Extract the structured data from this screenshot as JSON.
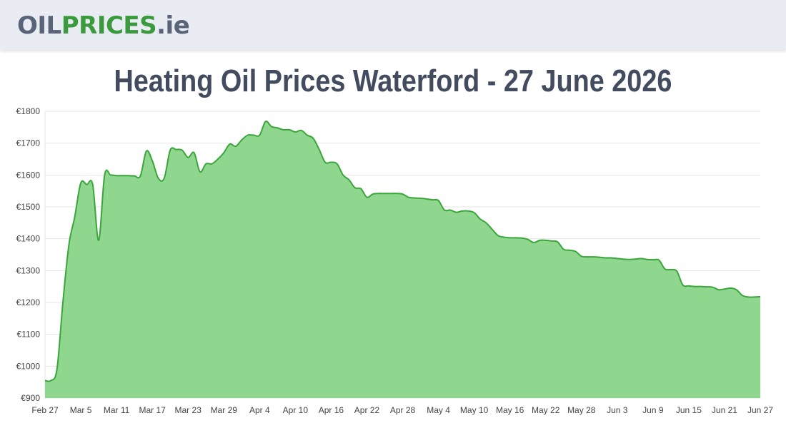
{
  "header": {
    "logo_part1": "OIL",
    "logo_part2": "PRICES",
    "logo_part3": ".ie"
  },
  "page_title": "Heating Oil Prices Waterford - 27 June 2026",
  "colors": {
    "header_bg": "#e9ecf3",
    "logo_gray": "#5a6478",
    "logo_green": "#3b9a3e",
    "area_fill": "#8fd68f",
    "line": "#3aa63a",
    "grid": "#e5e5e5"
  },
  "chart_data": {
    "type": "area",
    "title": "",
    "xlabel": "",
    "ylabel": "",
    "ylim": [
      900,
      1800
    ],
    "grid": true,
    "legend": "none",
    "y_ticks": [
      "€900",
      "€1000",
      "€1100",
      "€1200",
      "€1300",
      "€1400",
      "€1500",
      "€1600",
      "€1700",
      "€1800"
    ],
    "x_ticks": [
      "Feb 27",
      "Mar 5",
      "Mar 11",
      "Mar 17",
      "Mar 23",
      "Mar 29",
      "Apr 4",
      "Apr 10",
      "Apr 16",
      "Apr 22",
      "Apr 28",
      "May 4",
      "May 10",
      "May 16",
      "May 22",
      "May 28",
      "Jun 3",
      "Jun 9",
      "Jun 15",
      "Jun 21",
      "Jun 27"
    ],
    "x_start": "2026-02-27",
    "x_end": "2026-06-27",
    "series": [
      {
        "points": [
          [
            "2026-02-27",
            955
          ],
          [
            "2026-02-28",
            955
          ],
          [
            "2026-03-01",
            990
          ],
          [
            "2026-03-02",
            1200
          ],
          [
            "2026-03-03",
            1380
          ],
          [
            "2026-03-04",
            1470
          ],
          [
            "2026-03-05",
            1575
          ],
          [
            "2026-03-06",
            1570
          ],
          [
            "2026-03-07",
            1570
          ],
          [
            "2026-03-08",
            1395
          ],
          [
            "2026-03-09",
            1600
          ],
          [
            "2026-03-10",
            1600
          ],
          [
            "2026-03-11",
            1598
          ],
          [
            "2026-03-12",
            1598
          ],
          [
            "2026-03-13",
            1598
          ],
          [
            "2026-03-14",
            1597
          ],
          [
            "2026-03-15",
            1597
          ],
          [
            "2026-03-16",
            1675
          ],
          [
            "2026-03-17",
            1645
          ],
          [
            "2026-03-18",
            1590
          ],
          [
            "2026-03-19",
            1590
          ],
          [
            "2026-03-20",
            1678
          ],
          [
            "2026-03-21",
            1680
          ],
          [
            "2026-03-22",
            1678
          ],
          [
            "2026-03-23",
            1655
          ],
          [
            "2026-03-24",
            1670
          ],
          [
            "2026-03-25",
            1610
          ],
          [
            "2026-03-26",
            1635
          ],
          [
            "2026-03-27",
            1635
          ],
          [
            "2026-03-28",
            1650
          ],
          [
            "2026-03-29",
            1670
          ],
          [
            "2026-03-30",
            1697
          ],
          [
            "2026-03-31",
            1690
          ],
          [
            "2026-04-01",
            1710
          ],
          [
            "2026-04-02",
            1725
          ],
          [
            "2026-04-03",
            1725
          ],
          [
            "2026-04-04",
            1725
          ],
          [
            "2026-04-05",
            1768
          ],
          [
            "2026-04-06",
            1752
          ],
          [
            "2026-04-07",
            1748
          ],
          [
            "2026-04-08",
            1742
          ],
          [
            "2026-04-09",
            1742
          ],
          [
            "2026-04-10",
            1735
          ],
          [
            "2026-04-11",
            1740
          ],
          [
            "2026-04-12",
            1725
          ],
          [
            "2026-04-13",
            1715
          ],
          [
            "2026-04-14",
            1680
          ],
          [
            "2026-04-15",
            1640
          ],
          [
            "2026-04-16",
            1640
          ],
          [
            "2026-04-17",
            1635
          ],
          [
            "2026-04-18",
            1600
          ],
          [
            "2026-04-19",
            1585
          ],
          [
            "2026-04-20",
            1560
          ],
          [
            "2026-04-21",
            1557
          ],
          [
            "2026-04-22",
            1530
          ],
          [
            "2026-04-23",
            1540
          ],
          [
            "2026-04-24",
            1542
          ],
          [
            "2026-04-25",
            1542
          ],
          [
            "2026-04-26",
            1542
          ],
          [
            "2026-04-27",
            1542
          ],
          [
            "2026-04-28",
            1540
          ],
          [
            "2026-04-29",
            1530
          ],
          [
            "2026-04-30",
            1528
          ],
          [
            "2026-05-01",
            1527
          ],
          [
            "2026-05-02",
            1525
          ],
          [
            "2026-05-03",
            1522
          ],
          [
            "2026-05-04",
            1520
          ],
          [
            "2026-05-05",
            1490
          ],
          [
            "2026-05-06",
            1490
          ],
          [
            "2026-05-07",
            1483
          ],
          [
            "2026-05-08",
            1487
          ],
          [
            "2026-05-09",
            1487
          ],
          [
            "2026-05-10",
            1482
          ],
          [
            "2026-05-11",
            1462
          ],
          [
            "2026-05-12",
            1450
          ],
          [
            "2026-05-13",
            1430
          ],
          [
            "2026-05-14",
            1410
          ],
          [
            "2026-05-15",
            1405
          ],
          [
            "2026-05-16",
            1403
          ],
          [
            "2026-05-17",
            1403
          ],
          [
            "2026-05-18",
            1402
          ],
          [
            "2026-05-19",
            1398
          ],
          [
            "2026-05-20",
            1388
          ],
          [
            "2026-05-21",
            1395
          ],
          [
            "2026-05-22",
            1395
          ],
          [
            "2026-05-23",
            1393
          ],
          [
            "2026-05-24",
            1390
          ],
          [
            "2026-05-25",
            1367
          ],
          [
            "2026-05-26",
            1364
          ],
          [
            "2026-05-27",
            1360
          ],
          [
            "2026-05-28",
            1345
          ],
          [
            "2026-05-29",
            1343
          ],
          [
            "2026-05-30",
            1343
          ],
          [
            "2026-05-31",
            1342
          ],
          [
            "2026-06-01",
            1340
          ],
          [
            "2026-06-02",
            1340
          ],
          [
            "2026-06-03",
            1338
          ],
          [
            "2026-06-04",
            1336
          ],
          [
            "2026-06-05",
            1335
          ],
          [
            "2026-06-06",
            1336
          ],
          [
            "2026-06-07",
            1338
          ],
          [
            "2026-06-08",
            1335
          ],
          [
            "2026-06-09",
            1334
          ],
          [
            "2026-06-10",
            1333
          ],
          [
            "2026-06-11",
            1305
          ],
          [
            "2026-06-12",
            1303
          ],
          [
            "2026-06-13",
            1298
          ],
          [
            "2026-06-14",
            1255
          ],
          [
            "2026-06-15",
            1252
          ],
          [
            "2026-06-16",
            1250
          ],
          [
            "2026-06-17",
            1250
          ],
          [
            "2026-06-18",
            1249
          ],
          [
            "2026-06-19",
            1248
          ],
          [
            "2026-06-20",
            1240
          ],
          [
            "2026-06-21",
            1242
          ],
          [
            "2026-06-22",
            1245
          ],
          [
            "2026-06-23",
            1240
          ],
          [
            "2026-06-24",
            1222
          ],
          [
            "2026-06-25",
            1217
          ],
          [
            "2026-06-26",
            1217
          ],
          [
            "2026-06-27",
            1218
          ]
        ]
      }
    ]
  }
}
